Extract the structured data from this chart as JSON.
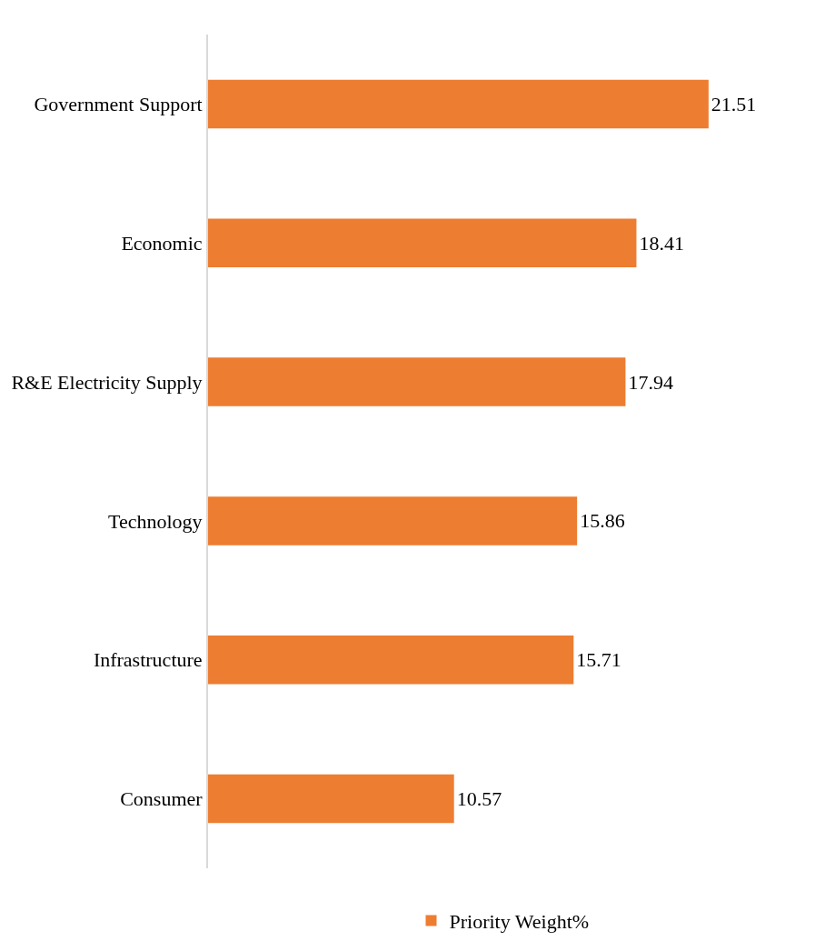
{
  "chart_data": {
    "type": "bar",
    "orientation": "horizontal",
    "categories": [
      "Government Support",
      "Economic",
      "R&E Electricity Supply",
      "Technology",
      "Infrastructure",
      "Consumer"
    ],
    "series": [
      {
        "name": "Priority Weight%",
        "color": "#ed7d31",
        "values": [
          21.51,
          18.41,
          17.94,
          15.86,
          15.71,
          10.57
        ]
      }
    ],
    "data_labels": true,
    "grid": false,
    "legend": "bottom"
  }
}
